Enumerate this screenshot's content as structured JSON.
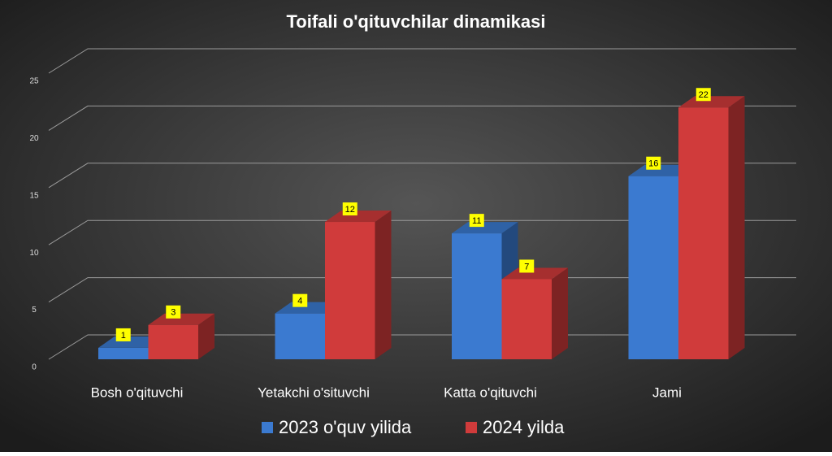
{
  "chart_data": {
    "type": "bar",
    "title": "Toifali o'qituvchilar dinamikasi",
    "categories": [
      "Bosh o'qituvchi",
      "Yetakchi o'situvchi",
      "Katta o'qituvchi",
      "Jami"
    ],
    "series": [
      {
        "name": "2023 o'quv yilida",
        "color": "#3b7ad0",
        "values": [
          1,
          4,
          11,
          16
        ]
      },
      {
        "name": "2024 yilda",
        "color": "#d03b3b",
        "values": [
          3,
          12,
          7,
          22
        ]
      }
    ],
    "ylim": [
      0,
      25
    ],
    "yticks": [
      0,
      5,
      10,
      15,
      20,
      25
    ],
    "grid": true,
    "legend": "bottom"
  }
}
